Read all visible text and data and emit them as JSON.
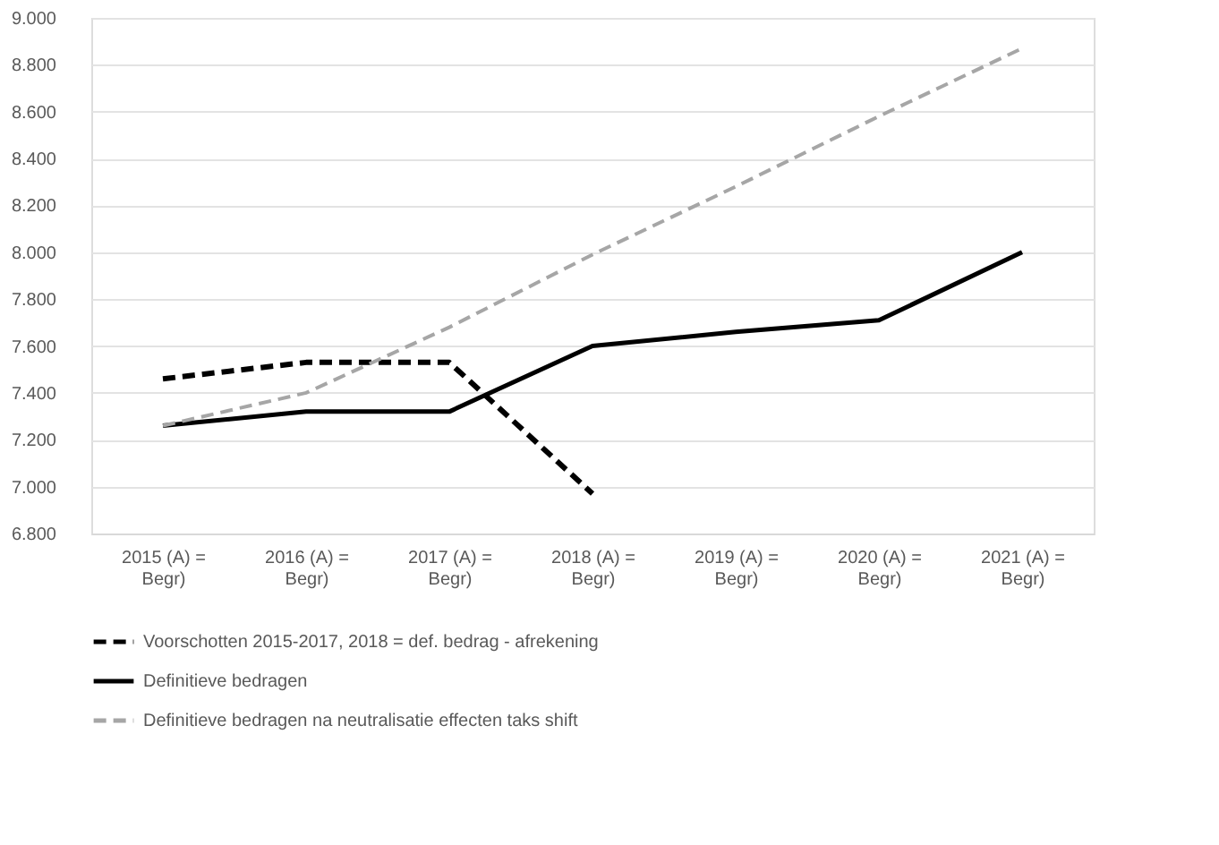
{
  "chart_data": {
    "type": "line",
    "categories": [
      "2015 (A) = Begr)",
      "2016 (A) = Begr)",
      "2017 (A) = Begr)",
      "2018 (A) = Begr)",
      "2019 (A) = Begr)",
      "2020 (A) = Begr)",
      "2021 (A) = Begr)"
    ],
    "series": [
      {
        "name": "Voorschotten 2015-2017, 2018 = def. bedrag - afrekening",
        "color": "#000000",
        "line_style": "dashed",
        "values": [
          7460,
          7530,
          7530,
          6970,
          null,
          null,
          null
        ]
      },
      {
        "name": "Definitieve bedragen",
        "color": "#000000",
        "line_style": "solid",
        "values": [
          7260,
          7320,
          7320,
          7600,
          7660,
          7710,
          8000
        ]
      },
      {
        "name": "Definitieve bedragen na neutralisatie effecten taks shift",
        "color": "#a6a6a6",
        "line_style": "dashed",
        "values": [
          7260,
          7400,
          7680,
          7990,
          8280,
          8580,
          8870
        ]
      }
    ],
    "ylim": [
      6800,
      9000
    ],
    "yticks": [
      {
        "value": 6800,
        "label": "6.800"
      },
      {
        "value": 7000,
        "label": "7.000"
      },
      {
        "value": 7200,
        "label": "7.200"
      },
      {
        "value": 7400,
        "label": "7.400"
      },
      {
        "value": 7600,
        "label": "7.600"
      },
      {
        "value": 7800,
        "label": "7.800"
      },
      {
        "value": 8000,
        "label": "8.000"
      },
      {
        "value": 8200,
        "label": "8.200"
      },
      {
        "value": 8400,
        "label": "8.400"
      },
      {
        "value": 8600,
        "label": "8.600"
      },
      {
        "value": 8800,
        "label": "8.800"
      },
      {
        "value": 9000,
        "label": "9.000"
      }
    ],
    "grid": "y",
    "legend": "bottom",
    "marker": "none"
  }
}
